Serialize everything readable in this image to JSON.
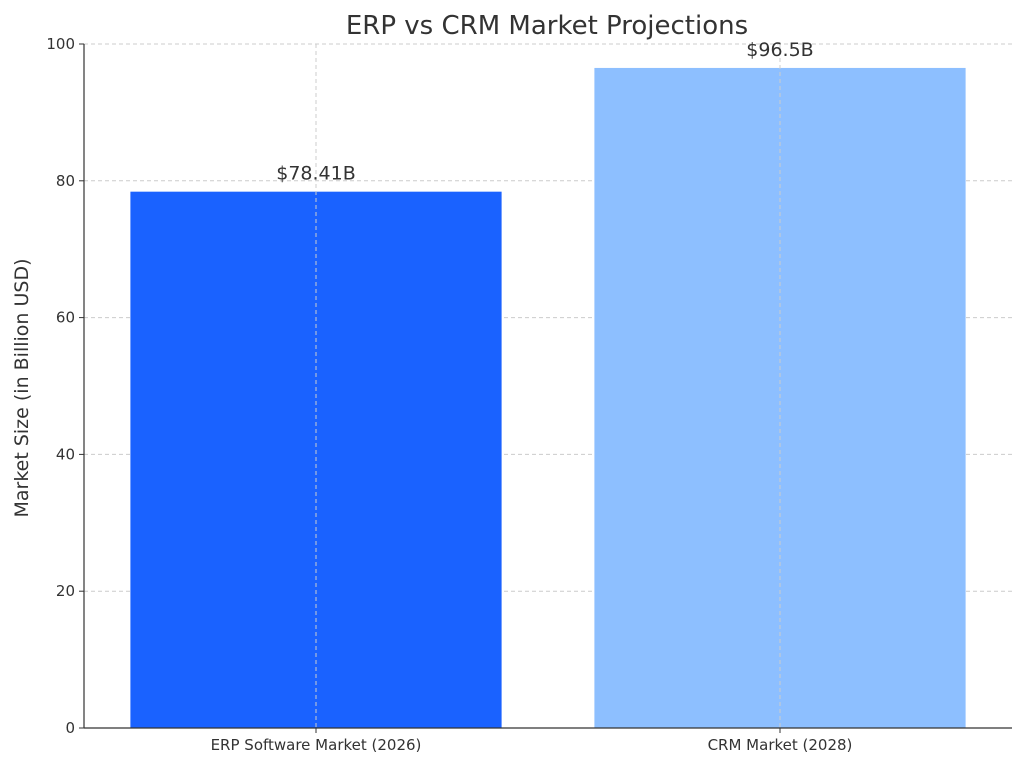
{
  "chart_data": {
    "type": "bar",
    "title": "ERP vs CRM Market Projections",
    "ylabel": "Market Size (in Billion USD)",
    "xlabel": "",
    "categories": [
      "ERP Software Market (2026)",
      "CRM Market (2028)"
    ],
    "values": [
      78.41,
      96.5
    ],
    "value_labels": [
      "$78.41B",
      "$96.5B"
    ],
    "colors": [
      "#1a62ff",
      "#8dbfff"
    ],
    "ylim": [
      0,
      100
    ],
    "yticks": [
      0,
      20,
      40,
      60,
      80,
      100
    ],
    "grid": true
  }
}
